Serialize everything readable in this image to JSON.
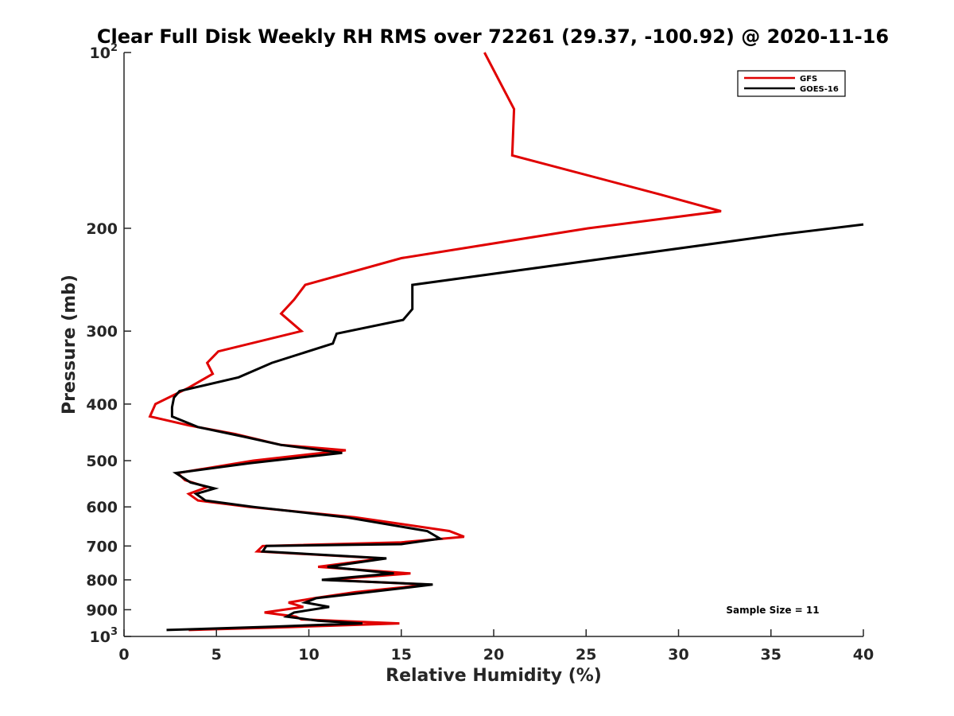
{
  "chart_data": {
    "type": "line",
    "title": "Clear Full Disk Weekly RH RMS over 72261 (29.37, -100.92) @ 2020-11-16",
    "xlabel": "Relative Humidity (%)",
    "ylabel": "Pressure (mb)",
    "xlim": [
      0,
      40
    ],
    "ylim": [
      100,
      1000
    ],
    "yscale": "log",
    "y_reversed": true,
    "xticks": [
      0,
      5,
      10,
      15,
      20,
      25,
      30,
      35,
      40
    ],
    "yticks": [
      {
        "value": 100,
        "base": "10",
        "exp": "2"
      },
      {
        "value": 200,
        "label": "200"
      },
      {
        "value": 300,
        "label": "300"
      },
      {
        "value": 400,
        "label": "400"
      },
      {
        "value": 500,
        "label": "500"
      },
      {
        "value": 600,
        "label": "600"
      },
      {
        "value": 700,
        "label": "700"
      },
      {
        "value": 800,
        "label": "800"
      },
      {
        "value": 900,
        "label": "900"
      },
      {
        "value": 1000,
        "base": "10",
        "exp": "3"
      }
    ],
    "legend_position": "top-right",
    "grid": false,
    "annotation": "Sample Size = 11",
    "series": [
      {
        "name": "GFS",
        "color": "#e00000",
        "points": [
          [
            19.5,
            100
          ],
          [
            21.1,
            125
          ],
          [
            21.0,
            150
          ],
          [
            29.0,
            175
          ],
          [
            32.3,
            187
          ],
          [
            25.1,
            200
          ],
          [
            15.0,
            225
          ],
          [
            9.8,
            250
          ],
          [
            9.2,
            265
          ],
          [
            8.5,
            280
          ],
          [
            9.6,
            300
          ],
          [
            5.1,
            325
          ],
          [
            4.5,
            340
          ],
          [
            4.8,
            355
          ],
          [
            3.5,
            375
          ],
          [
            1.7,
            400
          ],
          [
            1.4,
            420
          ],
          [
            3.5,
            435
          ],
          [
            6.0,
            450
          ],
          [
            8.5,
            470
          ],
          [
            12.0,
            480
          ],
          [
            7.0,
            500
          ],
          [
            2.9,
            525
          ],
          [
            3.3,
            540
          ],
          [
            4.5,
            555
          ],
          [
            3.5,
            570
          ],
          [
            4.0,
            585
          ],
          [
            6.8,
            600
          ],
          [
            12.5,
            625
          ],
          [
            17.6,
            660
          ],
          [
            18.4,
            675
          ],
          [
            15.0,
            690
          ],
          [
            7.5,
            700
          ],
          [
            7.2,
            715
          ],
          [
            14.0,
            735
          ],
          [
            10.5,
            760
          ],
          [
            15.5,
            780
          ],
          [
            11.0,
            800
          ],
          [
            16.5,
            815
          ],
          [
            12.5,
            840
          ],
          [
            10.3,
            860
          ],
          [
            8.9,
            875
          ],
          [
            9.7,
            890
          ],
          [
            7.6,
            910
          ],
          [
            9.3,
            925
          ],
          [
            9.6,
            935
          ],
          [
            14.9,
            950
          ],
          [
            8.5,
            965
          ],
          [
            3.5,
            975
          ]
        ]
      },
      {
        "name": "GOES-16",
        "color": "#000000",
        "points": [
          [
            40.0,
            197
          ],
          [
            35.5,
            205
          ],
          [
            15.6,
            250
          ],
          [
            15.6,
            275
          ],
          [
            15.1,
            287
          ],
          [
            11.5,
            303
          ],
          [
            11.3,
            315
          ],
          [
            8.0,
            340
          ],
          [
            6.2,
            360
          ],
          [
            3.0,
            380
          ],
          [
            2.7,
            390
          ],
          [
            2.6,
            405
          ],
          [
            2.6,
            420
          ],
          [
            4.0,
            438
          ],
          [
            6.5,
            455
          ],
          [
            8.5,
            470
          ],
          [
            11.8,
            485
          ],
          [
            6.8,
            505
          ],
          [
            2.8,
            525
          ],
          [
            3.6,
            545
          ],
          [
            4.9,
            558
          ],
          [
            3.9,
            570
          ],
          [
            4.4,
            585
          ],
          [
            7.0,
            600
          ],
          [
            12.0,
            625
          ],
          [
            16.4,
            660
          ],
          [
            17.1,
            680
          ],
          [
            15.0,
            695
          ],
          [
            7.7,
            700
          ],
          [
            7.5,
            715
          ],
          [
            14.2,
            735
          ],
          [
            11.0,
            760
          ],
          [
            14.6,
            780
          ],
          [
            10.7,
            800
          ],
          [
            16.7,
            815
          ],
          [
            12.5,
            845
          ],
          [
            10.4,
            860
          ],
          [
            9.8,
            875
          ],
          [
            11.1,
            890
          ],
          [
            9.2,
            910
          ],
          [
            8.8,
            925
          ],
          [
            10.5,
            940
          ],
          [
            12.9,
            950
          ],
          [
            8.0,
            962
          ],
          [
            2.3,
            975
          ]
        ]
      }
    ]
  }
}
